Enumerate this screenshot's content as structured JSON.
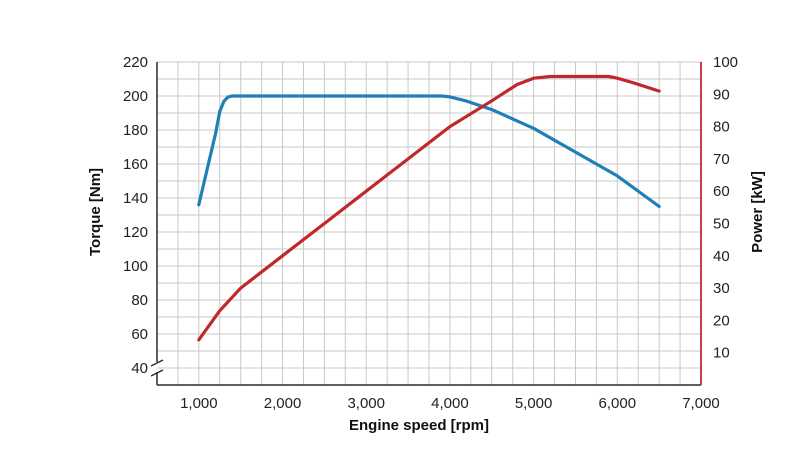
{
  "chart_data": {
    "type": "line",
    "title": "",
    "xlabel": "Engine speed [rpm]",
    "ylabel_left": "Torque [Nm]",
    "ylabel_right": "Power [kW]",
    "xlim": [
      500,
      7000
    ],
    "ylim_left": [
      30,
      220
    ],
    "ylim_right": [
      0,
      100
    ],
    "x_ticks": [
      1000,
      2000,
      3000,
      4000,
      5000,
      6000,
      7000
    ],
    "x_tick_labels": [
      "1,000",
      "2,000",
      "3,000",
      "4,000",
      "5,000",
      "6,000",
      "7,000"
    ],
    "y_ticks_left": [
      40,
      60,
      80,
      100,
      120,
      140,
      160,
      180,
      200,
      220
    ],
    "y_tick_labels_left": [
      "40",
      "60",
      "80",
      "100",
      "120",
      "140",
      "160",
      "180",
      "200",
      "220"
    ],
    "y_ticks_right": [
      10,
      20,
      30,
      40,
      50,
      60,
      70,
      80,
      90,
      100
    ],
    "y_tick_labels_right": [
      "10",
      "20",
      "30",
      "40",
      "50",
      "60",
      "70",
      "80",
      "90",
      "100"
    ],
    "grid": true,
    "axis_break": true,
    "series": [
      {
        "axis": "left",
        "color": "#1f7fb6",
        "x": [
          1000,
          1200,
          1250,
          1300,
          1350,
          1400,
          1500,
          2000,
          3000,
          3900,
          4000,
          4200,
          4500,
          5000,
          5500,
          6000,
          6500
        ],
        "y": [
          136,
          178,
          191,
          197,
          199.5,
          200,
          200,
          200,
          200,
          200,
          199.5,
          197,
          192,
          181,
          167,
          153,
          135
        ]
      },
      {
        "axis": "right",
        "color": "#c0282a",
        "x": [
          1000,
          1250,
          1500,
          2000,
          2500,
          3000,
          3500,
          4000,
          4500,
          4800,
          5000,
          5200,
          5500,
          5900,
          6000,
          6200,
          6500
        ],
        "y": [
          14,
          23,
          30,
          40,
          50,
          60,
          70,
          80,
          88,
          93,
          95,
          95.5,
          95.5,
          95.5,
          95,
          93.5,
          91
        ]
      }
    ]
  }
}
